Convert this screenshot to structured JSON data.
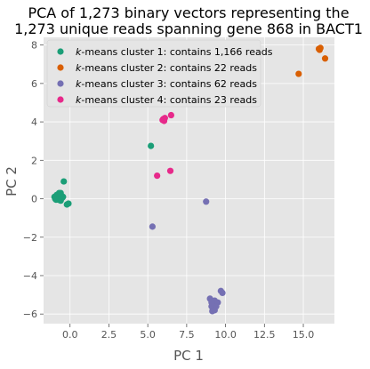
{
  "chart_data": {
    "type": "scatter",
    "title_line1": "PCA of 1,273 binary vectors representing the",
    "title_line2": "1,273 unique reads spanning gene 868 in BACT1",
    "xlabel": "PC 1",
    "ylabel": "PC 2",
    "xlim": [
      -1.7,
      17.0
    ],
    "ylim": [
      -6.5,
      8.4
    ],
    "xticks": [
      0.0,
      2.5,
      5.0,
      7.5,
      10.0,
      12.5,
      15.0
    ],
    "xtick_labels": [
      "0.0",
      "2.5",
      "5.0",
      "7.5",
      "10.0",
      "12.5",
      "15.0"
    ],
    "yticks": [
      -6,
      -4,
      -2,
      0,
      2,
      4,
      6,
      8
    ],
    "ytick_labels": [
      "−6",
      "−4",
      "−2",
      "0",
      "2",
      "4",
      "6",
      "8"
    ],
    "grid": true,
    "legend_position": "upper-left",
    "series": [
      {
        "name_prefix": "k",
        "name_rest": "-means cluster 1: contains 1,166 reads",
        "color": "#1b9e77",
        "points": [
          [
            -0.9,
            0.1
          ],
          [
            -0.8,
            0.2
          ],
          [
            -0.7,
            0.3
          ],
          [
            -0.6,
            0.2
          ],
          [
            -0.7,
            0.0
          ],
          [
            -0.9,
            -0.05
          ],
          [
            -0.5,
            0.05
          ],
          [
            -0.6,
            -0.1
          ],
          [
            -0.8,
            0.15
          ],
          [
            -0.7,
            0.25
          ],
          [
            -0.55,
            0.15
          ],
          [
            -0.65,
            0.05
          ],
          [
            -0.85,
            0.2
          ],
          [
            -0.75,
            -0.05
          ],
          [
            -0.6,
            0.3
          ],
          [
            -0.45,
            0.1
          ],
          [
            -0.4,
            0.9
          ],
          [
            -0.2,
            -0.3
          ],
          [
            -0.1,
            -0.25
          ],
          [
            -1.0,
            0.1
          ],
          [
            -0.95,
            0.0
          ]
        ]
      },
      {
        "name_prefix": "k",
        "name_rest": "-means cluster 2: contains 22 reads",
        "color": "#d95f02",
        "points": [
          [
            16.0,
            7.8
          ],
          [
            16.1,
            7.85
          ],
          [
            16.05,
            7.75
          ],
          [
            16.4,
            7.3
          ],
          [
            14.7,
            6.5
          ]
        ]
      },
      {
        "name_prefix": "k",
        "name_rest": "-means cluster 3: contains 62 reads",
        "color": "#7570b3",
        "points": [
          [
            5.3,
            -1.45
          ],
          [
            8.75,
            -0.15
          ],
          [
            9.7,
            -4.8
          ],
          [
            9.8,
            -4.9
          ],
          [
            9.0,
            -5.2
          ],
          [
            9.1,
            -5.3
          ],
          [
            9.3,
            -5.3
          ],
          [
            9.5,
            -5.4
          ],
          [
            9.2,
            -5.5
          ],
          [
            9.1,
            -5.6
          ],
          [
            9.25,
            -5.75
          ],
          [
            9.15,
            -5.85
          ],
          [
            9.3,
            -5.8
          ],
          [
            9.1,
            -5.4
          ],
          [
            9.4,
            -5.6
          ]
        ]
      },
      {
        "name_prefix": "k",
        "name_rest": "-means cluster 4: contains 23 reads",
        "color": "#e7298a",
        "points": [
          [
            5.95,
            4.1
          ],
          [
            6.0,
            4.15
          ],
          [
            6.05,
            4.05
          ],
          [
            6.1,
            4.2
          ],
          [
            6.5,
            4.35
          ],
          [
            6.45,
            1.45
          ],
          [
            5.6,
            1.2
          ]
        ]
      }
    ],
    "extra_points": [
      {
        "series_index": 0,
        "x": 5.2,
        "y": 2.75
      }
    ]
  }
}
